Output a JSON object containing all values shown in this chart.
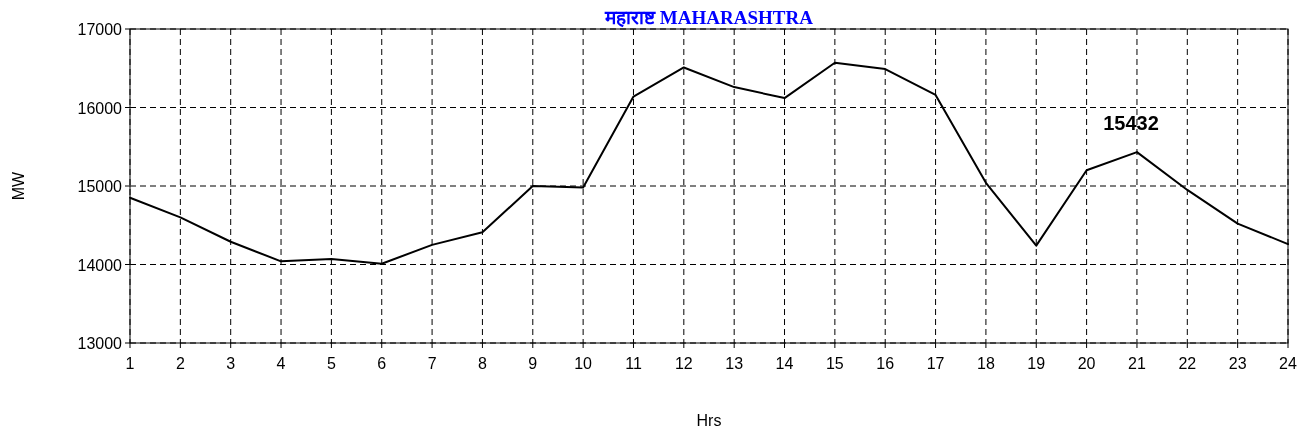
{
  "chart_data": {
    "type": "line",
    "title": "महाराष्ट MAHARASHTRA",
    "xlabel": "Hrs",
    "ylabel": "MW",
    "x": [
      1,
      2,
      3,
      4,
      5,
      6,
      7,
      8,
      9,
      10,
      11,
      12,
      13,
      14,
      15,
      16,
      17,
      18,
      19,
      20,
      21,
      22,
      23,
      24
    ],
    "values": [
      14850,
      14600,
      14290,
      14040,
      14070,
      14010,
      14250,
      14410,
      15000,
      14980,
      16140,
      16510,
      16260,
      16120,
      16570,
      16490,
      16160,
      15040,
      14240,
      15200,
      15432,
      14950,
      14520,
      14260
    ],
    "color": "#000000",
    "xlim": [
      1,
      24
    ],
    "xticks": [
      1,
      2,
      3,
      4,
      5,
      6,
      7,
      8,
      9,
      10,
      11,
      12,
      13,
      14,
      15,
      16,
      17,
      18,
      19,
      20,
      21,
      22,
      23,
      24
    ],
    "ylim": [
      13000,
      17000
    ],
    "yticks": [
      13000,
      14000,
      15000,
      16000,
      17000
    ],
    "grid": true,
    "annotations": [
      {
        "text": "15432",
        "x": 21,
        "y": 15432
      }
    ]
  }
}
